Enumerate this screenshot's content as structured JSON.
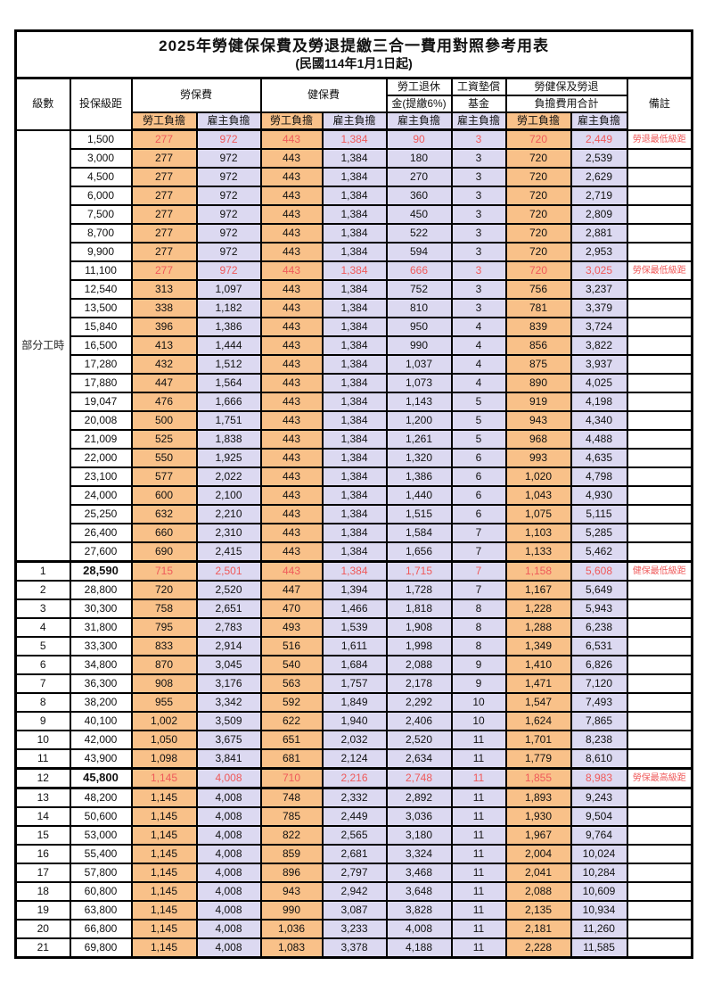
{
  "title": "2025年勞健保保費及勞退提繳三合一費用對照參考用表",
  "subtitle": "(民國114年1月1日起)",
  "header": {
    "level": "級數",
    "bracket": "投保級距",
    "labor_ins": "勞保費",
    "health_ins": "健保費",
    "pension_line1": "勞工退休",
    "pension_line2": "金(提繳6%)",
    "fund_line1": "工資墊償",
    "fund_line2": "基金",
    "total_line1": "勞健保及勞退",
    "total_line2": "負擔費用合計",
    "remark": "備註",
    "employee": "勞工負擔",
    "employer": "雇主負擔"
  },
  "part_time_label": "部分工時",
  "colors": {
    "employee_fill": "#f9c189",
    "employer_fill": "#dcd9f1",
    "highlight_red": "#ef5a5a",
    "remark_red": "#f87272",
    "grid": "#000000"
  },
  "rows": [
    {
      "level": "部分工時",
      "level_span": 23,
      "bracket": "1,500",
      "values": [
        "277",
        "972",
        "443",
        "1,384",
        "90",
        "3",
        "720",
        "2,449"
      ],
      "remark": "勞退最低級距",
      "red": true
    },
    {
      "bracket": "3,000",
      "values": [
        "277",
        "972",
        "443",
        "1,384",
        "180",
        "3",
        "720",
        "2,539"
      ],
      "remark": ""
    },
    {
      "bracket": "4,500",
      "values": [
        "277",
        "972",
        "443",
        "1,384",
        "270",
        "3",
        "720",
        "2,629"
      ],
      "remark": ""
    },
    {
      "bracket": "6,000",
      "values": [
        "277",
        "972",
        "443",
        "1,384",
        "360",
        "3",
        "720",
        "2,719"
      ],
      "remark": ""
    },
    {
      "bracket": "7,500",
      "values": [
        "277",
        "972",
        "443",
        "1,384",
        "450",
        "3",
        "720",
        "2,809"
      ],
      "remark": ""
    },
    {
      "bracket": "8,700",
      "values": [
        "277",
        "972",
        "443",
        "1,384",
        "522",
        "3",
        "720",
        "2,881"
      ],
      "remark": ""
    },
    {
      "bracket": "9,900",
      "values": [
        "277",
        "972",
        "443",
        "1,384",
        "594",
        "3",
        "720",
        "2,953"
      ],
      "remark": ""
    },
    {
      "bracket": "11,100",
      "values": [
        "277",
        "972",
        "443",
        "1,384",
        "666",
        "3",
        "720",
        "3,025"
      ],
      "remark": "勞保最低級距",
      "red": true
    },
    {
      "bracket": "12,540",
      "values": [
        "313",
        "1,097",
        "443",
        "1,384",
        "752",
        "3",
        "756",
        "3,237"
      ],
      "remark": ""
    },
    {
      "bracket": "13,500",
      "values": [
        "338",
        "1,182",
        "443",
        "1,384",
        "810",
        "3",
        "781",
        "3,379"
      ],
      "remark": ""
    },
    {
      "bracket": "15,840",
      "values": [
        "396",
        "1,386",
        "443",
        "1,384",
        "950",
        "4",
        "839",
        "3,724"
      ],
      "remark": ""
    },
    {
      "bracket": "16,500",
      "values": [
        "413",
        "1,444",
        "443",
        "1,384",
        "990",
        "4",
        "856",
        "3,822"
      ],
      "remark": ""
    },
    {
      "bracket": "17,280",
      "values": [
        "432",
        "1,512",
        "443",
        "1,384",
        "1,037",
        "4",
        "875",
        "3,937"
      ],
      "remark": ""
    },
    {
      "bracket": "17,880",
      "values": [
        "447",
        "1,564",
        "443",
        "1,384",
        "1,073",
        "4",
        "890",
        "4,025"
      ],
      "remark": ""
    },
    {
      "bracket": "19,047",
      "values": [
        "476",
        "1,666",
        "443",
        "1,384",
        "1,143",
        "5",
        "919",
        "4,198"
      ],
      "remark": ""
    },
    {
      "bracket": "20,008",
      "values": [
        "500",
        "1,751",
        "443",
        "1,384",
        "1,200",
        "5",
        "943",
        "4,340"
      ],
      "remark": ""
    },
    {
      "bracket": "21,009",
      "values": [
        "525",
        "1,838",
        "443",
        "1,384",
        "1,261",
        "5",
        "968",
        "4,488"
      ],
      "remark": ""
    },
    {
      "bracket": "22,000",
      "values": [
        "550",
        "1,925",
        "443",
        "1,384",
        "1,320",
        "6",
        "993",
        "4,635"
      ],
      "remark": ""
    },
    {
      "bracket": "23,100",
      "values": [
        "577",
        "2,022",
        "443",
        "1,384",
        "1,386",
        "6",
        "1,020",
        "4,798"
      ],
      "remark": ""
    },
    {
      "bracket": "24,000",
      "values": [
        "600",
        "2,100",
        "443",
        "1,384",
        "1,440",
        "6",
        "1,043",
        "4,930"
      ],
      "remark": ""
    },
    {
      "bracket": "25,250",
      "values": [
        "632",
        "2,210",
        "443",
        "1,384",
        "1,515",
        "6",
        "1,075",
        "5,115"
      ],
      "remark": ""
    },
    {
      "bracket": "26,400",
      "values": [
        "660",
        "2,310",
        "443",
        "1,384",
        "1,584",
        "7",
        "1,103",
        "5,285"
      ],
      "remark": ""
    },
    {
      "bracket": "27,600",
      "values": [
        "690",
        "2,415",
        "443",
        "1,384",
        "1,656",
        "7",
        "1,133",
        "5,462"
      ],
      "remark": ""
    },
    {
      "level": "1",
      "bracket": "28,590",
      "values": [
        "715",
        "2,501",
        "443",
        "1,384",
        "1,715",
        "7",
        "1,158",
        "5,608"
      ],
      "remark": "健保最低級距",
      "red": true,
      "bold_bracket": true,
      "thick_top": true
    },
    {
      "level": "2",
      "bracket": "28,800",
      "values": [
        "720",
        "2,520",
        "447",
        "1,394",
        "1,728",
        "7",
        "1,167",
        "5,649"
      ],
      "remark": ""
    },
    {
      "level": "3",
      "bracket": "30,300",
      "values": [
        "758",
        "2,651",
        "470",
        "1,466",
        "1,818",
        "8",
        "1,228",
        "5,943"
      ],
      "remark": ""
    },
    {
      "level": "4",
      "bracket": "31,800",
      "values": [
        "795",
        "2,783",
        "493",
        "1,539",
        "1,908",
        "8",
        "1,288",
        "6,238"
      ],
      "remark": ""
    },
    {
      "level": "5",
      "bracket": "33,300",
      "values": [
        "833",
        "2,914",
        "516",
        "1,611",
        "1,998",
        "8",
        "1,349",
        "6,531"
      ],
      "remark": ""
    },
    {
      "level": "6",
      "bracket": "34,800",
      "values": [
        "870",
        "3,045",
        "540",
        "1,684",
        "2,088",
        "9",
        "1,410",
        "6,826"
      ],
      "remark": ""
    },
    {
      "level": "7",
      "bracket": "36,300",
      "values": [
        "908",
        "3,176",
        "563",
        "1,757",
        "2,178",
        "9",
        "1,471",
        "7,120"
      ],
      "remark": ""
    },
    {
      "level": "8",
      "bracket": "38,200",
      "values": [
        "955",
        "3,342",
        "592",
        "1,849",
        "2,292",
        "10",
        "1,547",
        "7,493"
      ],
      "remark": ""
    },
    {
      "level": "9",
      "bracket": "40,100",
      "values": [
        "1,002",
        "3,509",
        "622",
        "1,940",
        "2,406",
        "10",
        "1,624",
        "7,865"
      ],
      "remark": ""
    },
    {
      "level": "10",
      "bracket": "42,000",
      "values": [
        "1,050",
        "3,675",
        "651",
        "2,032",
        "2,520",
        "11",
        "1,701",
        "8,238"
      ],
      "remark": ""
    },
    {
      "level": "11",
      "bracket": "43,900",
      "values": [
        "1,098",
        "3,841",
        "681",
        "2,124",
        "2,634",
        "11",
        "1,779",
        "8,610"
      ],
      "remark": ""
    },
    {
      "level": "12",
      "bracket": "45,800",
      "values": [
        "1,145",
        "4,008",
        "710",
        "2,216",
        "2,748",
        "11",
        "1,855",
        "8,983"
      ],
      "remark": "勞保最高級距",
      "red": true,
      "bold_bracket": true,
      "thick_top": true,
      "thick_bottom": true
    },
    {
      "level": "13",
      "bracket": "48,200",
      "values": [
        "1,145",
        "4,008",
        "748",
        "2,332",
        "2,892",
        "11",
        "1,893",
        "9,243"
      ],
      "remark": ""
    },
    {
      "level": "14",
      "bracket": "50,600",
      "values": [
        "1,145",
        "4,008",
        "785",
        "2,449",
        "3,036",
        "11",
        "1,930",
        "9,504"
      ],
      "remark": ""
    },
    {
      "level": "15",
      "bracket": "53,000",
      "values": [
        "1,145",
        "4,008",
        "822",
        "2,565",
        "3,180",
        "11",
        "1,967",
        "9,764"
      ],
      "remark": ""
    },
    {
      "level": "16",
      "bracket": "55,400",
      "values": [
        "1,145",
        "4,008",
        "859",
        "2,681",
        "3,324",
        "11",
        "2,004",
        "10,024"
      ],
      "remark": ""
    },
    {
      "level": "17",
      "bracket": "57,800",
      "values": [
        "1,145",
        "4,008",
        "896",
        "2,797",
        "3,468",
        "11",
        "2,041",
        "10,284"
      ],
      "remark": ""
    },
    {
      "level": "18",
      "bracket": "60,800",
      "values": [
        "1,145",
        "4,008",
        "943",
        "2,942",
        "3,648",
        "11",
        "2,088",
        "10,609"
      ],
      "remark": ""
    },
    {
      "level": "19",
      "bracket": "63,800",
      "values": [
        "1,145",
        "4,008",
        "990",
        "3,087",
        "3,828",
        "11",
        "2,135",
        "10,934"
      ],
      "remark": ""
    },
    {
      "level": "20",
      "bracket": "66,800",
      "values": [
        "1,145",
        "4,008",
        "1,036",
        "3,233",
        "4,008",
        "11",
        "2,181",
        "11,260"
      ],
      "remark": ""
    },
    {
      "level": "21",
      "bracket": "69,800",
      "values": [
        "1,145",
        "4,008",
        "1,083",
        "3,378",
        "4,188",
        "11",
        "2,228",
        "11,585"
      ],
      "remark": ""
    }
  ],
  "value_column_names": [
    "labor-employee",
    "labor-employer",
    "health-employee",
    "health-employer",
    "pension-employer",
    "fund-employer",
    "total-employee",
    "total-employer"
  ]
}
